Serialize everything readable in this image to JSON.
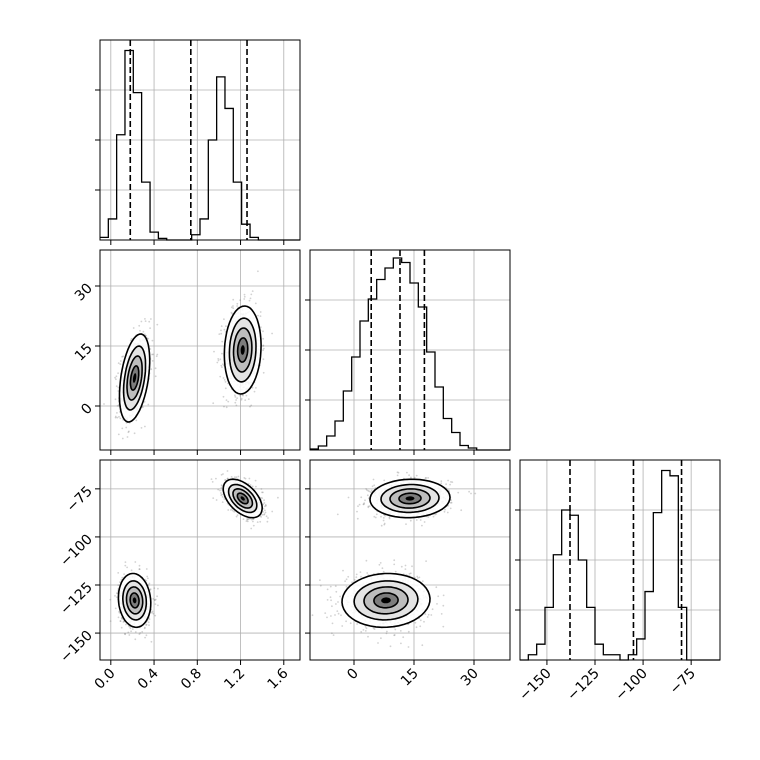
{
  "chart_data": {
    "type": "corner",
    "grid": true,
    "parameters": [
      "",
      "",
      ""
    ],
    "colors": {
      "hist": "#000000",
      "contour": "#000000",
      "scatter": "#7f7f7f",
      "quantile": "#000000"
    },
    "ranges": [
      [
        -0.1,
        1.75
      ],
      [
        -11,
        39
      ],
      [
        -164,
        -60
      ]
    ],
    "ticks": [
      {
        "values": [
          0.0,
          0.4,
          0.8,
          1.2,
          1.6
        ],
        "labels": [
          "0.0",
          "0.4",
          "0.8",
          "1.2",
          "1.6"
        ]
      },
      {
        "values": [
          0,
          15,
          30
        ],
        "labels": [
          "0",
          "15",
          "30"
        ]
      },
      {
        "values": [
          -150,
          -125,
          -100,
          -75
        ],
        "labels": [
          "−150",
          "−125",
          "−100",
          "−75"
        ]
      }
    ],
    "histograms": [
      {
        "param": 0,
        "bin_edges": [
          -0.1,
          -0.023,
          0.054,
          0.131,
          0.208,
          0.285,
          0.363,
          0.44,
          0.517,
          0.594,
          0.671,
          0.748,
          0.825,
          0.902,
          0.979,
          1.056,
          1.133,
          1.21,
          1.288,
          1.365,
          1.442,
          1.519,
          1.596,
          1.673,
          1.75
        ],
        "counts": [
          5,
          40,
          200,
          360,
          280,
          110,
          15,
          3,
          0,
          0,
          0,
          10,
          40,
          190,
          310,
          250,
          110,
          30,
          5,
          0,
          0,
          0,
          0,
          0
        ],
        "quantiles": [
          0.18,
          0.74,
          1.26
        ],
        "ymax": 380
      },
      {
        "param": 1,
        "bin_edges": [
          -11,
          -8.92,
          -6.83,
          -4.75,
          -2.67,
          -0.58,
          1.5,
          3.58,
          5.67,
          7.75,
          9.83,
          11.92,
          14,
          16.08,
          18.17,
          20.25,
          22.33,
          24.42,
          26.5,
          28.58,
          30.67,
          32.75,
          34.83,
          36.92,
          39
        ],
        "counts": [
          2,
          8,
          28,
          58,
          118,
          186,
          258,
          302,
          341,
          364,
          384,
          375,
          334,
          286,
          196,
          126,
          63,
          35,
          9,
          4,
          0,
          0,
          0,
          0
        ],
        "quantiles": [
          4.3,
          11.5,
          17.6
        ],
        "ymax": 400
      },
      {
        "param": 2,
        "bin_edges": [
          -164,
          -159.67,
          -155.33,
          -151,
          -146.67,
          -142.33,
          -138,
          -133.67,
          -129.33,
          -125,
          -120.67,
          -116.33,
          -112,
          -107.67,
          -103.33,
          -99,
          -94.67,
          -90.33,
          -86,
          -81.67,
          -77.33,
          -73,
          -68.67,
          -64.33,
          -60
        ],
        "counts": [
          0,
          10,
          30,
          100,
          200,
          285,
          275,
          190,
          100,
          30,
          10,
          10,
          0,
          10,
          40,
          130,
          280,
          360,
          350,
          100,
          0,
          0,
          0,
          0
        ],
        "quantiles": [
          -138,
          -105,
          -80
        ],
        "ymax": 380
      }
    ],
    "pairs": [
      {
        "x": 0,
        "y": 1,
        "clusters": [
          {
            "mean": [
              0.22,
              7
            ],
            "sd": [
              0.07,
              5.5
            ],
            "rho": 0.4,
            "weight": 0.5
          },
          {
            "mean": [
              1.22,
              14
            ],
            "sd": [
              0.085,
              5.5
            ],
            "rho": 0.1,
            "weight": 0.5
          }
        ]
      },
      {
        "x": 0,
        "y": 2,
        "clusters": [
          {
            "mean": [
              0.22,
              -133
            ],
            "sd": [
              0.075,
              7
            ],
            "rho": -0.1,
            "weight": 0.5
          },
          {
            "mean": [
              1.22,
              -80
            ],
            "sd": [
              0.09,
              5
            ],
            "rho": -0.5,
            "weight": 0.5
          }
        ]
      },
      {
        "x": 1,
        "y": 2,
        "clusters": [
          {
            "mean": [
              8,
              -133
            ],
            "sd": [
              5.5,
              7
            ],
            "rho": 0.05,
            "weight": 0.5
          },
          {
            "mean": [
              14,
              -80
            ],
            "sd": [
              5,
              5
            ],
            "rho": 0.05,
            "weight": 0.5
          }
        ]
      }
    ]
  }
}
